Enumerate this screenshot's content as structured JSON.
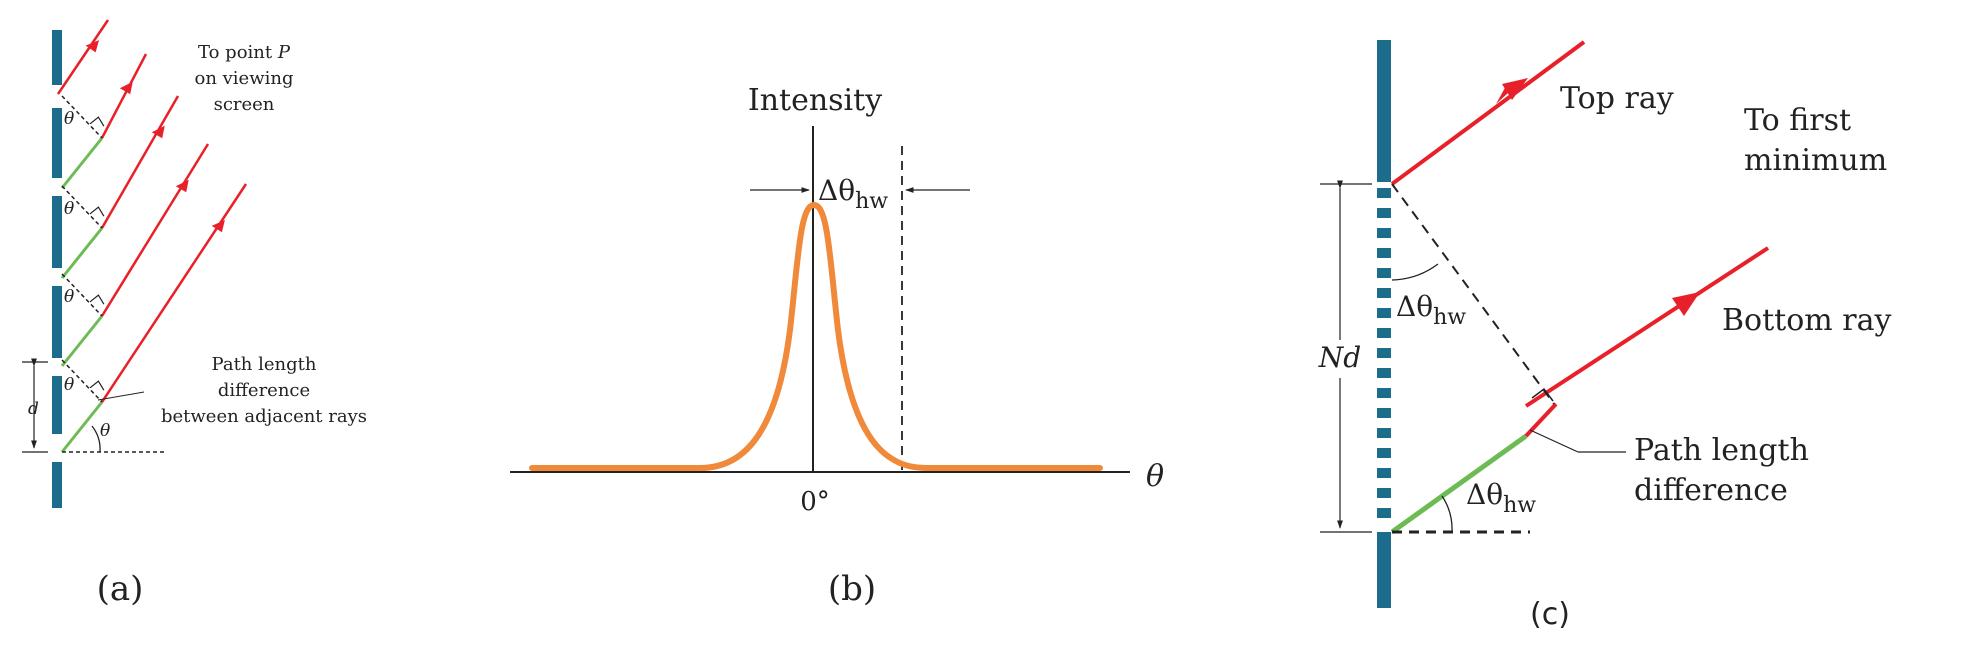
{
  "colors": {
    "grating": "#1c6c8b",
    "ray": "#e8202a",
    "path_segment": "#6cbb55",
    "curve": "#f0893a",
    "ink": "#222222"
  },
  "panel_a": {
    "caption": "(a)",
    "label_to_point_line1": "To point ",
    "label_to_point_p": "P",
    "label_to_point_line2": "on viewing",
    "label_to_point_line3": "screen",
    "theta": "θ",
    "d_label": "d",
    "path_label_line1": "Path length",
    "path_label_line2": "difference",
    "path_label_line3": "between adjacent rays"
  },
  "panel_b": {
    "caption": "(b)",
    "y_axis_label": "Intensity",
    "x_axis_label": "θ",
    "origin_label": "0°",
    "halfwidth_delta": "Δθ",
    "halfwidth_sub": "hw"
  },
  "panel_c": {
    "caption": "(c)",
    "top_ray_label": "Top ray",
    "bottom_ray_label": "Bottom ray",
    "first_min_line1": "To first",
    "first_min_line2": "minimum",
    "nd_label": "Nd",
    "angle_delta": "Δθ",
    "angle_sub": "hw",
    "path_label_line1": "Path length",
    "path_label_line2": "difference"
  }
}
